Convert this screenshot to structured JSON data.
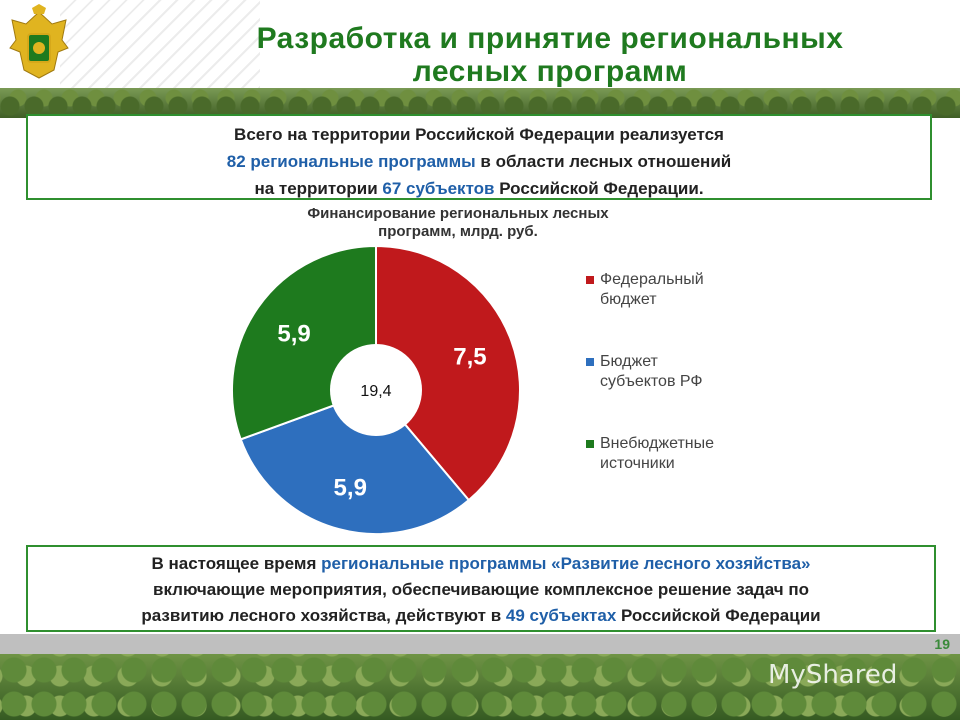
{
  "header": {
    "title_line1": "Разработка и принятие региональных",
    "title_line2": "лесных программ"
  },
  "summary": {
    "l1": "Всего на территории Российской Федерации реализуется",
    "l2_hl": "82 региональные программы",
    "l2_rest": " в области лесных отношений",
    "l3_a": "на территории ",
    "l3_hl": "67 субъектов",
    "l3_b": " Российской Федерации."
  },
  "chart_data": {
    "type": "pie",
    "title_line1": "Финансирование региональных лесных",
    "title_line2": "программ, млрд. руб.",
    "center_label": "19,4",
    "slices": [
      {
        "name": "Федеральный бюджет",
        "label": "7,5",
        "value": 7.5,
        "color": "#c0191c"
      },
      {
        "name": "Бюджет субъектов РФ",
        "label": "5,9",
        "value": 5.9,
        "color": "#2e6fbe"
      },
      {
        "name": "Внебюджетные источники",
        "label": "5,9",
        "value": 5.9,
        "color": "#1e7a1e"
      }
    ],
    "legend_position": "right"
  },
  "legend": [
    {
      "line1": "Федеральный",
      "line2": "бюджет",
      "color": "#c0191c"
    },
    {
      "line1": "Бюджет",
      "line2": "субъектов РФ",
      "color": "#2e6fbe"
    },
    {
      "line1": "Внебюджетные",
      "line2": "источники",
      "color": "#1e7a1e"
    }
  ],
  "bottom": {
    "a": "В настоящее время ",
    "hl1": "региональные программы «Развитие лесного хозяйства»",
    "b": "включающие мероприятия, обеспечивающие комплексное решение задач по",
    "c": "развитию лесного хозяйства, действуют в ",
    "hl2": "49 субъектах",
    "d": " Российской Федерации"
  },
  "page_number": "19",
  "watermark": "MyShared"
}
